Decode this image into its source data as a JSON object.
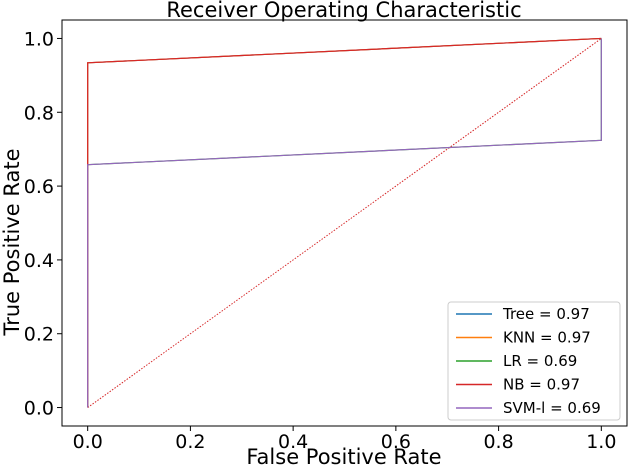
{
  "chart_data": {
    "type": "line",
    "title": "Receiver Operating Characteristic",
    "xlabel": "False Positive Rate",
    "ylabel": "True Positive Rate",
    "xlim": [
      -0.05,
      1.05
    ],
    "ylim": [
      -0.05,
      1.05
    ],
    "xticks": [
      0.0,
      0.2,
      0.4,
      0.6,
      0.8,
      1.0
    ],
    "yticks": [
      0.0,
      0.2,
      0.4,
      0.6,
      0.8,
      1.0
    ],
    "xtick_labels": [
      "0.0",
      "0.2",
      "0.4",
      "0.6",
      "0.8",
      "1.0"
    ],
    "ytick_labels": [
      "0.0",
      "0.2",
      "0.4",
      "0.6",
      "0.8",
      "1.0"
    ],
    "grid": false,
    "legend_position": "bottom-right",
    "series": [
      {
        "name": "Tree",
        "label": "Tree = 0.97",
        "color": "#1f77b4",
        "x": [
          0.0,
          0.0,
          1.0,
          1.0
        ],
        "y": [
          0.0,
          0.934,
          1.0,
          1.0
        ]
      },
      {
        "name": "KNN",
        "label": "KNN = 0.97",
        "color": "#ff7f0e",
        "x": [
          0.0,
          0.0,
          1.0,
          1.0
        ],
        "y": [
          0.0,
          0.934,
          1.0,
          1.0
        ]
      },
      {
        "name": "LR",
        "label": "LR = 0.69",
        "color": "#2ca02c",
        "x": [
          0.0,
          0.0,
          1.0,
          1.0
        ],
        "y": [
          0.0,
          0.658,
          0.724,
          1.0
        ]
      },
      {
        "name": "NB",
        "label": "NB = 0.97",
        "color": "#d62728",
        "x": [
          0.0,
          0.0,
          1.0,
          1.0
        ],
        "y": [
          0.0,
          0.934,
          1.0,
          1.0
        ]
      },
      {
        "name": "SVM-l",
        "label": "SVM-l = 0.69",
        "color": "#9467bd",
        "x": [
          0.0,
          0.0,
          1.0,
          1.0
        ],
        "y": [
          0.0,
          0.658,
          0.724,
          1.0
        ]
      }
    ],
    "diagonal": {
      "x": [
        0.0,
        1.0
      ],
      "y": [
        0.0,
        1.0
      ],
      "color": "#d62728",
      "style": "dotted"
    }
  }
}
